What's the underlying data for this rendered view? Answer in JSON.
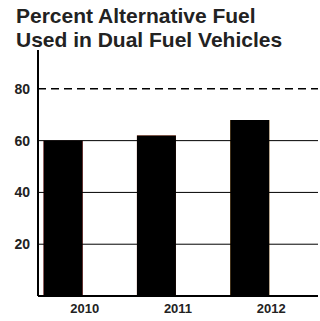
{
  "chart_data": {
    "type": "bar",
    "title": "Percent Alternative Fuel Used in Dual Fuel Vehicles",
    "categories": [
      "2010",
      "2011",
      "2012"
    ],
    "values": [
      60,
      62,
      68
    ],
    "colors": [
      "#e3261f",
      "#f05a28",
      "#f7a12a"
    ],
    "ylim": [
      0,
      95
    ],
    "yticks": [
      20,
      40,
      60,
      80
    ],
    "grid": true
  }
}
